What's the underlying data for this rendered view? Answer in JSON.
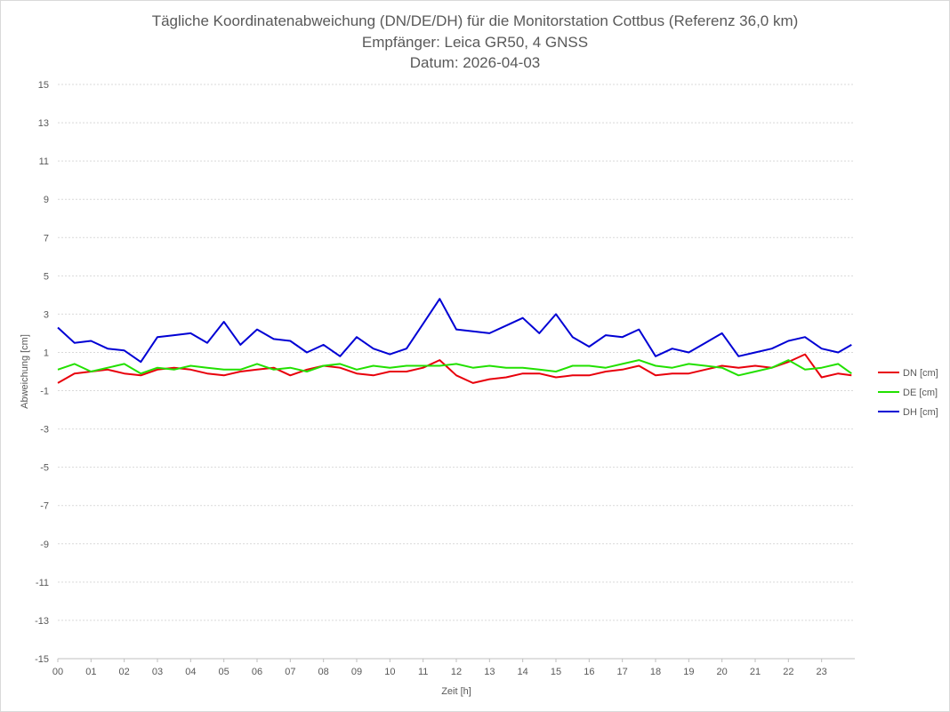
{
  "chart_data": {
    "type": "line",
    "title": "Tägliche Koordinatenabweichung (DN/DE/DH) für die Monitorstation Cottbus (Referenz 36,0 km)",
    "subtitle": "Empfänger: Leica GR50, 4 GNSS",
    "date_label": "Datum: 2026-04-03",
    "xlabel": "Zeit [h]",
    "ylabel": "Abweichung [cm]",
    "xlim": [
      0,
      24
    ],
    "ylim": [
      -15,
      15
    ],
    "x_ticks": [
      "00",
      "01",
      "02",
      "03",
      "04",
      "05",
      "06",
      "07",
      "08",
      "09",
      "10",
      "11",
      "12",
      "13",
      "14",
      "15",
      "16",
      "17",
      "18",
      "19",
      "20",
      "21",
      "22",
      "23"
    ],
    "y_ticks": [
      15,
      13,
      11,
      9,
      7,
      5,
      3,
      1,
      -1,
      -3,
      -5,
      -7,
      -9,
      -11,
      -13,
      -15
    ],
    "grid": "horizontal",
    "legend_position": "right",
    "x": [
      0,
      0.5,
      1,
      1.5,
      2,
      2.5,
      3,
      3.5,
      4,
      4.5,
      5,
      5.5,
      6,
      6.5,
      7,
      7.5,
      8,
      8.5,
      9,
      9.5,
      10,
      10.5,
      11,
      11.5,
      12,
      12.5,
      13,
      13.5,
      14,
      14.5,
      15,
      15.5,
      16,
      16.5,
      17,
      17.5,
      18,
      18.5,
      19,
      19.5,
      20,
      20.5,
      21,
      21.5,
      22,
      22.5,
      23,
      23.5,
      23.9
    ],
    "series": [
      {
        "name": "DN [cm]",
        "color": "#e8000b",
        "values": [
          -0.6,
          -0.1,
          0.0,
          0.1,
          -0.1,
          -0.2,
          0.1,
          0.2,
          0.1,
          -0.1,
          -0.2,
          0.0,
          0.1,
          0.2,
          -0.2,
          0.1,
          0.3,
          0.2,
          -0.1,
          -0.2,
          0.0,
          0.0,
          0.2,
          0.6,
          -0.2,
          -0.6,
          -0.4,
          -0.3,
          -0.1,
          -0.1,
          -0.3,
          -0.2,
          -0.2,
          0.0,
          0.1,
          0.3,
          -0.2,
          -0.1,
          -0.1,
          0.1,
          0.3,
          0.2,
          0.3,
          0.2,
          0.5,
          0.9,
          -0.3,
          -0.1,
          -0.2
        ]
      },
      {
        "name": "DE [cm]",
        "color": "#22e000",
        "values": [
          0.1,
          0.4,
          0.0,
          0.2,
          0.4,
          -0.1,
          0.2,
          0.1,
          0.3,
          0.2,
          0.1,
          0.1,
          0.4,
          0.1,
          0.2,
          0.0,
          0.3,
          0.4,
          0.1,
          0.3,
          0.2,
          0.3,
          0.3,
          0.3,
          0.4,
          0.2,
          0.3,
          0.2,
          0.2,
          0.1,
          0.0,
          0.3,
          0.3,
          0.2,
          0.4,
          0.6,
          0.3,
          0.2,
          0.4,
          0.3,
          0.2,
          -0.2,
          0.0,
          0.2,
          0.6,
          0.1,
          0.2,
          0.4,
          -0.1
        ]
      },
      {
        "name": "DH [cm]",
        "color": "#0000d4",
        "values": [
          2.3,
          1.5,
          1.6,
          1.2,
          1.1,
          0.5,
          1.8,
          1.9,
          2.0,
          1.5,
          2.6,
          1.4,
          2.2,
          1.7,
          1.6,
          1.0,
          1.4,
          0.8,
          1.8,
          1.2,
          0.9,
          1.2,
          2.5,
          3.8,
          2.2,
          2.1,
          2.0,
          2.4,
          2.8,
          2.0,
          3.0,
          1.8,
          1.3,
          1.9,
          1.8,
          2.2,
          0.8,
          1.2,
          1.0,
          1.5,
          2.0,
          0.8,
          1.0,
          1.2,
          1.6,
          1.8,
          1.2,
          1.0,
          1.4
        ]
      }
    ]
  }
}
